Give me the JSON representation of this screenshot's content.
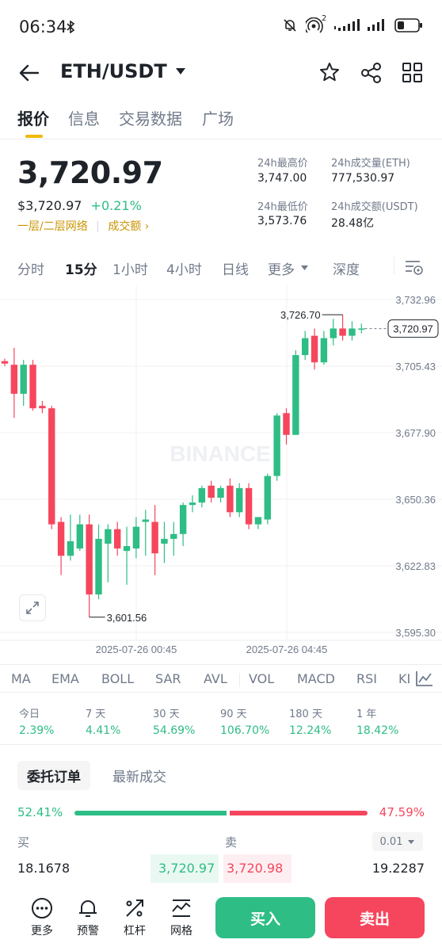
{
  "status_bar": {
    "time": "06:34",
    "signal_sup": "2"
  },
  "header": {
    "pair": "ETH/USDT"
  },
  "tabs": [
    "报价",
    "信息",
    "交易数据",
    "广场"
  ],
  "price": {
    "last": "3,720.97",
    "usd": "$3,720.97",
    "change": "+0.21%",
    "network_link": "一层/二层网络",
    "volume_link": "成交额",
    "colors": {
      "up": "#2ebd85",
      "down": "#f6465d",
      "accent": "#f0b90b"
    }
  },
  "stats": {
    "high_label": "24h最高价",
    "high": "3,747.00",
    "vol_eth_label": "24h成交量(ETH)",
    "vol_eth": "777,530.97",
    "low_label": "24h最低价",
    "low": "3,573.76",
    "vol_usdt_label": "24h成交额(USDT)",
    "vol_usdt": "28.48亿"
  },
  "intervals": [
    "分时",
    "15分",
    "1小时",
    "4小时",
    "日线",
    "更多",
    "深度"
  ],
  "chart": {
    "watermark": "BINANCE",
    "y_ticks": [
      "3,732.96",
      "3,705.43",
      "3,677.90",
      "3,650.36",
      "3,622.83",
      "3,595.30"
    ],
    "x_ticks": [
      "2025-07-26 00:45",
      "2025-07-26 04:45"
    ],
    "high_annot": "3,726.70",
    "low_annot": "3,601.56",
    "last_tag": "3,720.97"
  },
  "chart_data": {
    "type": "candlestick",
    "interval": "15分",
    "ylim": [
      3595.3,
      3732.96
    ],
    "candles": [
      {
        "o": 3707.5,
        "h": 3708.5,
        "l": 3705.5,
        "c": 3706.5
      },
      {
        "o": 3706.0,
        "h": 3713.0,
        "l": 3684.0,
        "c": 3694.0
      },
      {
        "o": 3694.0,
        "h": 3708.0,
        "l": 3689.0,
        "c": 3706.0
      },
      {
        "o": 3706.0,
        "h": 3708.0,
        "l": 3687.0,
        "c": 3688.0
      },
      {
        "o": 3689.0,
        "h": 3691.0,
        "l": 3686.0,
        "c": 3688.0
      },
      {
        "o": 3688.0,
        "h": 3689.0,
        "l": 3638.0,
        "c": 3640.0
      },
      {
        "o": 3641.0,
        "h": 3643.0,
        "l": 3619.0,
        "c": 3627.0
      },
      {
        "o": 3627.0,
        "h": 3644.0,
        "l": 3625.0,
        "c": 3633.0
      },
      {
        "o": 3630.0,
        "h": 3644.0,
        "l": 3629.0,
        "c": 3640.0
      },
      {
        "o": 3640.0,
        "h": 3644.0,
        "l": 3601.6,
        "c": 3611.0
      },
      {
        "o": 3611.0,
        "h": 3640.0,
        "l": 3609.0,
        "c": 3634.0
      },
      {
        "o": 3632.0,
        "h": 3640.0,
        "l": 3616.0,
        "c": 3638.0
      },
      {
        "o": 3638.0,
        "h": 3641.0,
        "l": 3627.0,
        "c": 3630.0
      },
      {
        "o": 3629.0,
        "h": 3639.0,
        "l": 3615.0,
        "c": 3631.0
      },
      {
        "o": 3630.0,
        "h": 3643.0,
        "l": 3626.0,
        "c": 3639.0
      },
      {
        "o": 3641.0,
        "h": 3646.0,
        "l": 3627.0,
        "c": 3642.0
      },
      {
        "o": 3641.0,
        "h": 3648.0,
        "l": 3619.0,
        "c": 3628.0
      },
      {
        "o": 3632.0,
        "h": 3641.0,
        "l": 3624.0,
        "c": 3634.0
      },
      {
        "o": 3634.0,
        "h": 3641.0,
        "l": 3627.0,
        "c": 3636.0
      },
      {
        "o": 3636.0,
        "h": 3649.0,
        "l": 3631.0,
        "c": 3648.0
      },
      {
        "o": 3648.0,
        "h": 3652.0,
        "l": 3645.0,
        "c": 3649.0
      },
      {
        "o": 3649.0,
        "h": 3656.0,
        "l": 3647.0,
        "c": 3655.0
      },
      {
        "o": 3656.0,
        "h": 3658.0,
        "l": 3649.0,
        "c": 3651.0
      },
      {
        "o": 3651.0,
        "h": 3656.0,
        "l": 3649.0,
        "c": 3655.0
      },
      {
        "o": 3656.0,
        "h": 3659.0,
        "l": 3643.0,
        "c": 3645.0
      },
      {
        "o": 3645.0,
        "h": 3657.0,
        "l": 3643.0,
        "c": 3655.0
      },
      {
        "o": 3655.0,
        "h": 3657.0,
        "l": 3638.0,
        "c": 3640.0
      },
      {
        "o": 3640.0,
        "h": 3643.0,
        "l": 3638.0,
        "c": 3643.0
      },
      {
        "o": 3642.0,
        "h": 3661.0,
        "l": 3640.0,
        "c": 3660.0
      },
      {
        "o": 3660.0,
        "h": 3686.0,
        "l": 3658.0,
        "c": 3685.0
      },
      {
        "o": 3686.0,
        "h": 3688.0,
        "l": 3673.0,
        "c": 3677.0
      },
      {
        "o": 3677.0,
        "h": 3712.0,
        "l": 3677.0,
        "c": 3710.0
      },
      {
        "o": 3710.0,
        "h": 3720.0,
        "l": 3708.0,
        "c": 3717.0
      },
      {
        "o": 3718.0,
        "h": 3721.0,
        "l": 3704.0,
        "c": 3707.0
      },
      {
        "o": 3707.0,
        "h": 3720.0,
        "l": 3706.0,
        "c": 3717.0
      },
      {
        "o": 3717.0,
        "h": 3725.0,
        "l": 3714.0,
        "c": 3721.0
      },
      {
        "o": 3721.0,
        "h": 3726.7,
        "l": 3716.0,
        "c": 3718.0
      },
      {
        "o": 3718.0,
        "h": 3724.0,
        "l": 3716.0,
        "c": 3721.0
      },
      {
        "o": 3720.5,
        "h": 3723.0,
        "l": 3719.0,
        "c": 3721.0
      }
    ],
    "x_labels": [
      "2025-07-26 00:45",
      "2025-07-26 04:45"
    ],
    "last_price": 3720.97
  },
  "indicators": [
    "MA",
    "EMA",
    "BOLL",
    "SAR",
    "AVL",
    "VOL",
    "MACD",
    "RSI",
    "KD"
  ],
  "performance": [
    {
      "label": "今日",
      "value": "2.39%"
    },
    {
      "label": "7 天",
      "value": "4.41%"
    },
    {
      "label": "30 天",
      "value": "54.69%"
    },
    {
      "label": "90 天",
      "value": "106.70%"
    },
    {
      "label": "180 天",
      "value": "12.24%"
    },
    {
      "label": "1 年",
      "value": "18.42%"
    }
  ],
  "orderbook": {
    "tab_active": "委托订单",
    "tab_other": "最新成交",
    "buy_ratio": "52.41%",
    "sell_ratio": "47.59%",
    "buy_ratio_value": 0.5241,
    "buy_label": "买",
    "sell_label": "卖",
    "precision": "0.01",
    "buy_qty": "18.1678",
    "buy_price": "3,720.97",
    "sell_price": "3,720.98",
    "sell_qty": "19.2287"
  },
  "bottom": {
    "more": "更多",
    "alert": "预警",
    "leverage": "杠杆",
    "grid": "网格",
    "buy": "买入",
    "sell": "卖出"
  }
}
